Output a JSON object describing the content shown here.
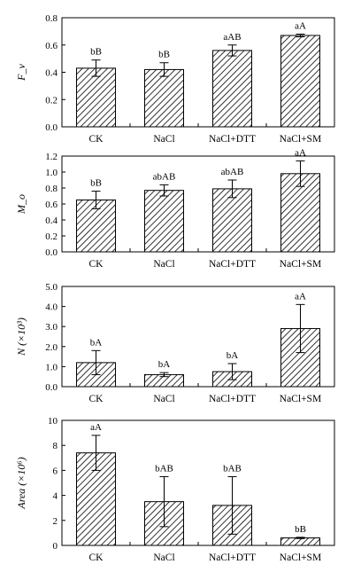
{
  "chart_data": [
    {
      "type": "bar",
      "ylabel": "F_v",
      "categories": [
        "CK",
        "NaCl",
        "NaCl+DTT",
        "NaCl+SM"
      ],
      "values": [
        0.43,
        0.42,
        0.56,
        0.67
      ],
      "error": [
        0.06,
        0.05,
        0.04,
        0.01
      ],
      "labels": [
        "bB",
        "bB",
        "aAB",
        "aA"
      ],
      "ylim": [
        0.0,
        0.8
      ],
      "yticks": [
        "0.0",
        "0.2",
        "0.4",
        "0.6",
        "0.8"
      ]
    },
    {
      "type": "bar",
      "ylabel": "M_o",
      "categories": [
        "CK",
        "NaCl",
        "NaCl+DTT",
        "NaCl+SM"
      ],
      "values": [
        0.65,
        0.77,
        0.79,
        0.98
      ],
      "error": [
        0.11,
        0.07,
        0.11,
        0.16
      ],
      "labels": [
        "bB",
        "abAB",
        "abAB",
        "aA"
      ],
      "ylim": [
        0.0,
        1.2
      ],
      "yticks": [
        "0.0",
        "0.2",
        "0.4",
        "0.6",
        "0.8",
        "1.0",
        "1.2"
      ]
    },
    {
      "type": "bar",
      "ylabel": "N (×10³)",
      "categories": [
        "CK",
        "NaCl",
        "NaCl+DTT",
        "NaCl+SM"
      ],
      "values": [
        1.2,
        0.6,
        0.75,
        2.9
      ],
      "error": [
        0.6,
        0.1,
        0.4,
        1.2
      ],
      "labels": [
        "bA",
        "bA",
        "bA",
        "aA"
      ],
      "ylim": [
        0.0,
        5.0
      ],
      "yticks": [
        "0.0",
        "1.0",
        "2.0",
        "3.0",
        "4.0",
        "5.0"
      ]
    },
    {
      "type": "bar",
      "ylabel": "Area (×10⁶)",
      "categories": [
        "CK",
        "NaCl",
        "NaCl+DTT",
        "NaCl+SM"
      ],
      "values": [
        7.4,
        3.5,
        3.2,
        0.6
      ],
      "error": [
        1.4,
        2.0,
        2.3,
        0.05
      ],
      "labels": [
        "aA",
        "bAB",
        "bAB",
        "bB"
      ],
      "ylim": [
        0,
        10
      ],
      "yticks": [
        "0",
        "2",
        "4",
        "6",
        "8",
        "10"
      ]
    }
  ]
}
